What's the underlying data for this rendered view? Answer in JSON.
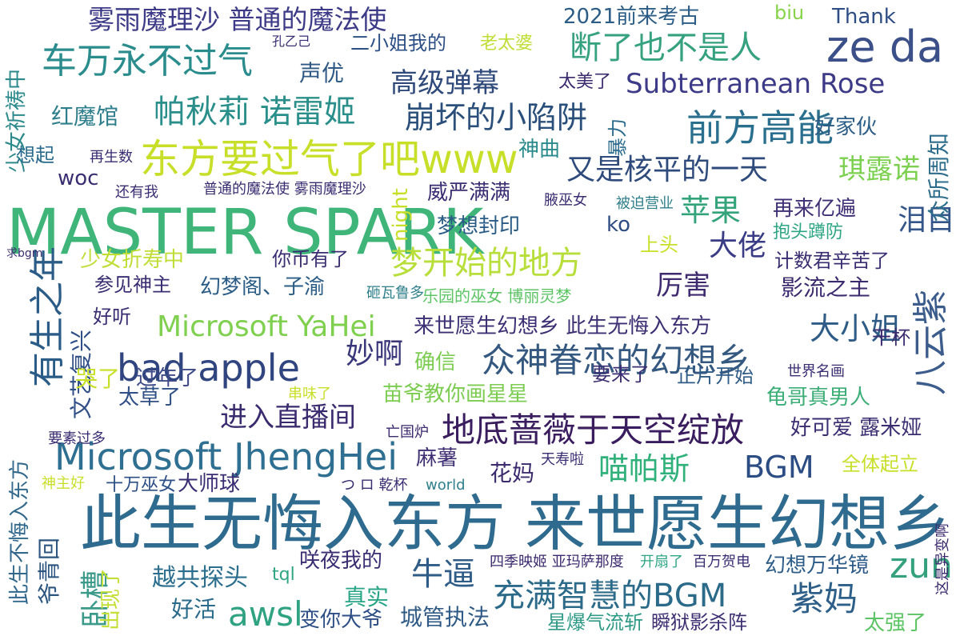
{
  "words": [
    {
      "text": "此生无悔入东方 来世愿生幻想乡",
      "color": "#2f6b8e"
    },
    {
      "text": "MASTER SPARK",
      "color": "#3fb57a"
    },
    {
      "text": "ze da",
      "color": "#3b4f88"
    },
    {
      "text": "雾雨魔理沙 普通的魔法使",
      "color": "#3d3a87"
    },
    {
      "text": "车万永不过气",
      "color": "#2a8c8c"
    },
    {
      "text": "东方要过气了吧www",
      "color": "#c8df2a"
    },
    {
      "text": "bad apple",
      "color": "#30457f"
    },
    {
      "text": "Microsoft JhengHei",
      "color": "#2e6f92"
    },
    {
      "text": "Microsoft YaHei",
      "color": "#7fd04f"
    },
    {
      "text": "Subterranean Rose",
      "color": "#3d3a87"
    },
    {
      "text": "众神眷恋的幻想乡",
      "color": "#34587f"
    },
    {
      "text": "地底蔷薇于天空绽放",
      "color": "#3a1d5e"
    },
    {
      "text": "高级弹幕",
      "color": "#2f4a7a"
    },
    {
      "text": "崩坏的小陷阱",
      "color": "#2a4f7a"
    },
    {
      "text": "帕秋莉 诺雷姬",
      "color": "#2a8f8a"
    },
    {
      "text": "前方高能",
      "color": "#2b6f8e"
    },
    {
      "text": "断了也不是人",
      "color": "#35a17e"
    },
    {
      "text": "又是核平的一天",
      "color": "#2f4b7c"
    },
    {
      "text": "梦开始的地方",
      "color": "#b7de3a"
    },
    {
      "text": "来世愿生幻想乡 此生无悔入东方",
      "color": "#3d2f73"
    },
    {
      "text": "大小姐",
      "color": "#2f5c86"
    },
    {
      "text": "充满智慧的BGM",
      "color": "#2c6a8a"
    },
    {
      "text": "紫妈",
      "color": "#2d5f88"
    },
    {
      "text": "BGM",
      "color": "#2c4d84"
    },
    {
      "text": "zun",
      "color": "#34a17c"
    },
    {
      "text": "牛逼",
      "color": "#2f5c86"
    },
    {
      "text": "awsl",
      "color": "#2fa282"
    },
    {
      "text": "进入直播间",
      "color": "#3a2a6e"
    },
    {
      "text": "有生之年",
      "color": "#2a5c87"
    },
    {
      "text": "八云紫",
      "color": "#3c5c8b"
    },
    {
      "text": "大佬",
      "color": "#3a3d85"
    },
    {
      "text": "苹果",
      "color": "#33a37a"
    },
    {
      "text": "泪目",
      "color": "#33558a"
    },
    {
      "text": "琪露诺",
      "color": "#7bd04f"
    },
    {
      "text": "妙啊",
      "color": "#3a367a"
    },
    {
      "text": "喵帕斯",
      "color": "#30b07a"
    },
    {
      "text": "厉害",
      "color": "#3f2a70"
    },
    {
      "text": "苗爷教你画星星",
      "color": "#7bcc50"
    },
    {
      "text": "文艺复兴",
      "color": "#2f4f86"
    },
    {
      "text": "威严满满",
      "color": "#3a2d72"
    },
    {
      "text": "红魔馆",
      "color": "#2e7e8c"
    },
    {
      "text": "梦想封印",
      "color": "#2a5c86"
    },
    {
      "text": "再来亿遍",
      "color": "#3f2f75"
    },
    {
      "text": "少女折寿中",
      "color": "#bede36"
    },
    {
      "text": "影流之主",
      "color": "#3b2a6e"
    },
    {
      "text": "卧槽",
      "color": "#3c9a8a"
    },
    {
      "text": "出现了",
      "color": "#c2df36"
    },
    {
      "text": "越共探头",
      "color": "#2b6e8e"
    },
    {
      "text": "城管执法",
      "color": "#2f5a86"
    },
    {
      "text": "真实",
      "color": "#28a587"
    },
    {
      "text": "星爆气流斩",
      "color": "#2f9a86"
    },
    {
      "text": "瞬狱影杀阵",
      "color": "#3e2f73"
    },
    {
      "text": "好活",
      "color": "#2a6b8c"
    },
    {
      "text": "变你大爷",
      "color": "#2d4f86"
    },
    {
      "text": "龟哥真男人",
      "color": "#3dae78"
    },
    {
      "text": "全体起立",
      "color": "#c8df2a"
    },
    {
      "text": "太强了",
      "color": "#5cc464"
    },
    {
      "text": "幻想万华镜",
      "color": "#2e5c88"
    },
    {
      "text": "爷青回",
      "color": "#2b557f"
    },
    {
      "text": "此生不悔入东方",
      "color": "#31688c"
    },
    {
      "text": "少女祈祷中",
      "color": "#2c8a8c"
    },
    {
      "text": "声优",
      "color": "#2f5a86"
    },
    {
      "text": "二小姐我的",
      "color": "#2c4f86"
    },
    {
      "text": "老太婆",
      "color": "#bede36"
    },
    {
      "text": "2021前来考古",
      "color": "#2b5c86"
    },
    {
      "text": "Thank",
      "color": "#2e4d85"
    },
    {
      "text": "biu",
      "color": "#87d34a"
    },
    {
      "text": "太美了",
      "color": "#3b2a6e"
    },
    {
      "text": "好家伙",
      "color": "#2b5c86"
    },
    {
      "text": "众所周知",
      "color": "#2e6e8c"
    },
    {
      "text": "暴力",
      "color": "#2a6a8c"
    },
    {
      "text": "神曲",
      "color": "#2a8a8c"
    },
    {
      "text": "想起",
      "color": "#2a6a8c"
    },
    {
      "text": "woc",
      "color": "#3a2d72"
    },
    {
      "text": "night",
      "color": "#c8df2a"
    },
    {
      "text": "ko",
      "color": "#2e4d85"
    },
    {
      "text": "上头",
      "color": "#c8df2a"
    },
    {
      "text": "抱头蹲防",
      "color": "#2ea583"
    },
    {
      "text": "计数君辛苦了",
      "color": "#3a2d72"
    },
    {
      "text": "你币有了",
      "color": "#3a2d72"
    },
    {
      "text": "参见神主",
      "color": "#3a2d72"
    },
    {
      "text": "幻梦阁、子渝",
      "color": "#2a5c86"
    },
    {
      "text": "乐园的巫女 博丽灵梦",
      "color": "#5cc464"
    },
    {
      "text": "好听",
      "color": "#3a2d72"
    },
    {
      "text": "确信",
      "color": "#7bcc50"
    },
    {
      "text": "过年了",
      "color": "#3e4b86"
    },
    {
      "text": "要来了",
      "color": "#3a2d72"
    },
    {
      "text": "正片开始",
      "color": "#2f5c86"
    },
    {
      "text": "哭了",
      "color": "#c8df2a"
    },
    {
      "text": "太草了",
      "color": "#2f4f86"
    },
    {
      "text": "干杯",
      "color": "#3b2a6e"
    },
    {
      "text": "好可爱 露米娅",
      "color": "#3a2d72"
    },
    {
      "text": "花妈",
      "color": "#3b2a6e"
    },
    {
      "text": "麻薯",
      "color": "#3f2f75"
    },
    {
      "text": "大师球",
      "color": "#3a2d72"
    },
    {
      "text": "十万巫女",
      "color": "#2c4f86"
    },
    {
      "text": "咲夜我的",
      "color": "#3a2d72"
    },
    {
      "text": "tql",
      "color": "#2ea583"
    },
    {
      "text": "四季映姬 亚玛萨那度",
      "color": "#3b2a6e"
    },
    {
      "text": "开扇了",
      "color": "#2ea583"
    },
    {
      "text": "百万贺电",
      "color": "#3a2d72"
    },
    {
      "text": "普通的魔法使 雾雨魔理沙",
      "color": "#3a2d72"
    },
    {
      "text": "还有我",
      "color": "#3a2d72"
    },
    {
      "text": "再生数",
      "color": "#3a2d72"
    },
    {
      "text": "腋巫女",
      "color": "#3a2d72"
    },
    {
      "text": "被迫营业",
      "color": "#2f7f8c"
    },
    {
      "text": "砸瓦鲁多",
      "color": "#2f7f8c"
    },
    {
      "text": "亡国炉",
      "color": "#3b2a6e"
    },
    {
      "text": "神主好",
      "color": "#c8df2a"
    },
    {
      "text": "world",
      "color": "#2f7f8c"
    },
    {
      "text": "串味了",
      "color": "#c8df2a"
    },
    {
      "text": "天寿啦",
      "color": "#3a2d72"
    },
    {
      "text": "世界名画",
      "color": "#3a2d72"
    },
    {
      "text": "つ ロ 乾杯",
      "color": "#3a2d72"
    },
    {
      "text": "要素过多",
      "color": "#3a2d72"
    },
    {
      "text": "这是异变啊",
      "color": "#3b2a6e"
    },
    {
      "text": "求bgm",
      "color": "#3a2d72"
    },
    {
      "text": "孔乙己",
      "color": "#3a2d72"
    }
  ]
}
